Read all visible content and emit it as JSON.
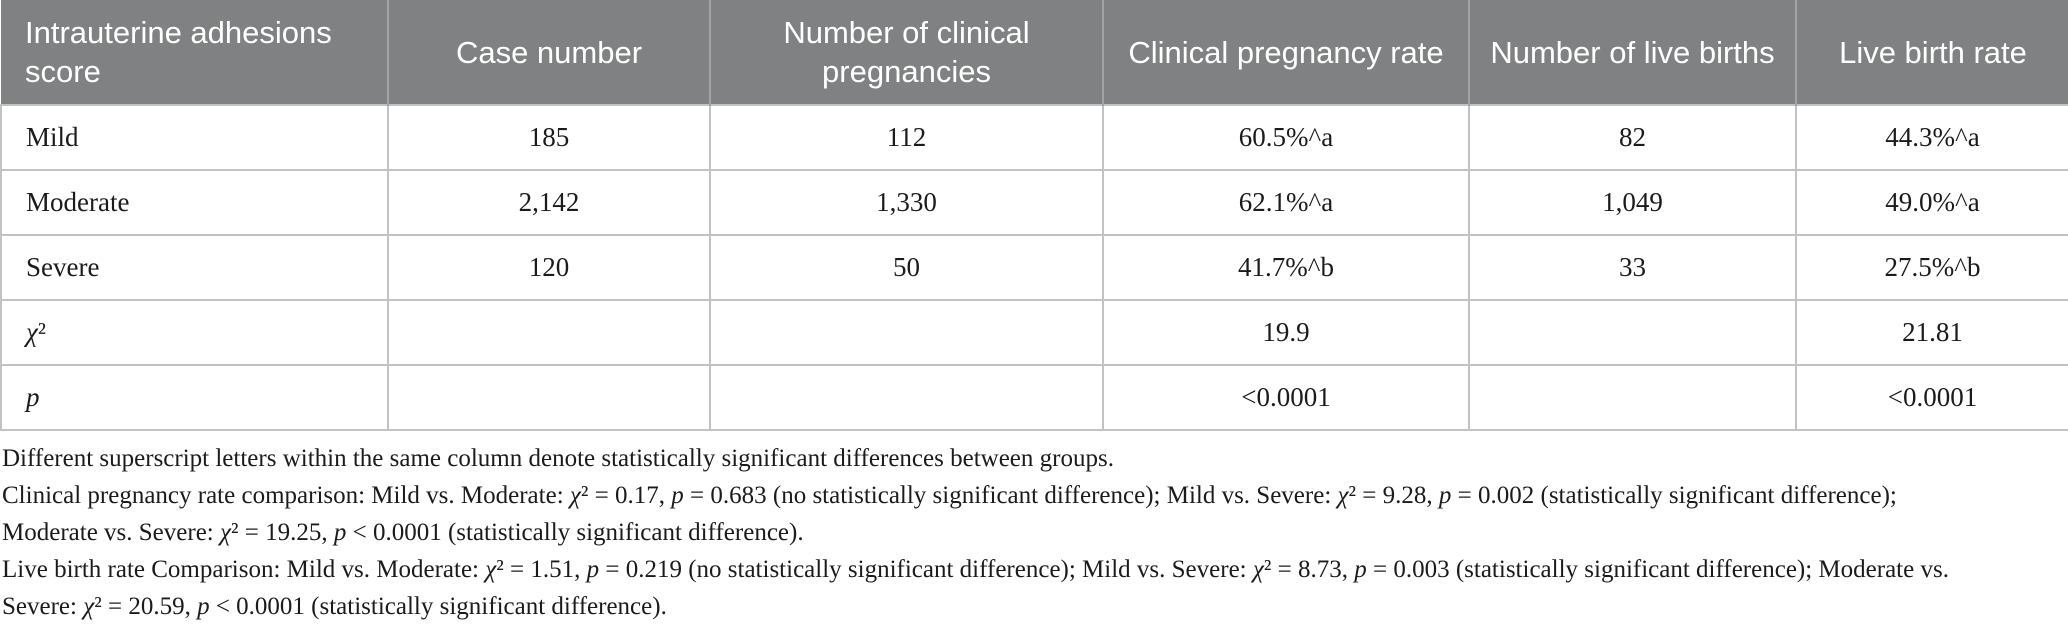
{
  "table": {
    "columns": [
      "Intrauterine adhesions score",
      "Case number",
      "Number of clinical pregnancies",
      "Clinical pregnancy rate",
      "Number of live births",
      "Live birth rate"
    ],
    "rows": [
      {
        "cells": [
          "Mild",
          "185",
          "112",
          "60.5%^a",
          "82",
          "44.3%^a"
        ]
      },
      {
        "cells": [
          "Moderate",
          "2,142",
          "1,330",
          "62.1%^a",
          "1,049",
          "49.0%^a"
        ]
      },
      {
        "cells": [
          "Severe",
          "120",
          "50",
          "41.7%^b",
          "33",
          "27.5%^b"
        ]
      },
      {
        "cells": [
          "*χ*²",
          "",
          "",
          "19.9",
          "",
          "21.81"
        ]
      },
      {
        "cells": [
          "*p*",
          "",
          "",
          "<0.0001",
          "",
          "<0.0001"
        ]
      }
    ]
  },
  "footnotes": {
    "lines": [
      "Different superscript letters within the same column denote statistically significant differences between groups.",
      "Clinical pregnancy rate comparison: Mild vs. Moderate: *χ*² = 0.17, *p* = 0.683 (no statistically significant difference); Mild vs. Severe: *χ*² = 9.28, *p* = 0.002 (statistically significant difference);",
      "Moderate vs. Severe: *χ*² = 19.25, *p* < 0.0001 (statistically significant difference).",
      "Live birth rate Comparison: Mild vs. Moderate: *χ*² = 1.51, *p* = 0.219 (no statistically significant difference); Mild vs. Severe: *χ*² = 8.73, *p* = 0.003 (statistically significant difference); Moderate vs.",
      "Severe: *χ*² = 20.59, *p* < 0.0001 (statistically significant difference)."
    ]
  },
  "colors": {
    "header_bg": "#808182",
    "header_text": "#ffffff",
    "header_divider": "#a3a3a3",
    "body_text": "#1b1b1b",
    "border": "#c2c2c2",
    "page_bg": "#ffffff"
  }
}
